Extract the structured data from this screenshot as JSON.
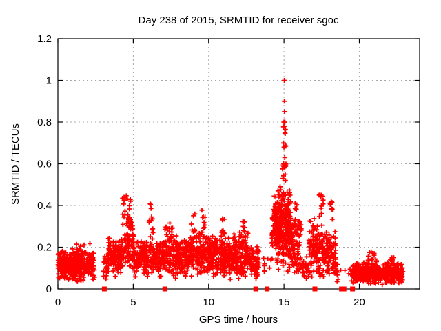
{
  "title": "Day 238 of 2015, SRMTID for receiver sgoc",
  "colors": {
    "marker": "#ff0000",
    "grid": "#a8a8a8",
    "axis": "#000000",
    "background": "#ffffff",
    "text": "#000000"
  },
  "chart_data": {
    "type": "scatter",
    "title": "Day 238 of 2015, SRMTID for receiver sgoc",
    "xlabel": "GPS time / hours",
    "ylabel": "SRMTID / TECUs",
    "xlim": [
      0,
      24
    ],
    "ylim": [
      0,
      1.2
    ],
    "x_ticks": [
      0,
      5,
      10,
      15,
      20
    ],
    "x_tick_labels": [
      "0",
      "5",
      "10",
      "15",
      "20"
    ],
    "y_ticks": [
      0,
      0.2,
      0.4,
      0.6,
      0.8,
      1.0,
      1.2
    ],
    "y_tick_labels": [
      "0",
      "0.2",
      "0.4",
      "0.6",
      "0.8",
      "1",
      "1.2"
    ],
    "grid": "dashed-gray-at-major-ticks",
    "legend": "none",
    "marker": "plus",
    "marker_color": "#ff0000",
    "series_name": "SRMTID",
    "peak_points": [
      [
        15.02,
        1.0
      ],
      [
        15.02,
        0.9
      ],
      [
        15.03,
        0.85
      ],
      [
        15.0,
        0.8
      ],
      [
        15.06,
        0.8
      ],
      [
        15.04,
        0.78
      ],
      [
        14.97,
        0.7
      ],
      [
        15.0,
        0.68
      ],
      [
        15.05,
        0.63
      ],
      [
        14.98,
        0.6
      ],
      [
        15.08,
        0.55
      ],
      [
        14.93,
        0.53
      ],
      [
        15.1,
        0.52
      ],
      [
        14.6,
        0.47
      ],
      [
        14.65,
        0.44
      ]
    ],
    "zero_marker_x": [
      3.08,
      7.1,
      13.13,
      13.88,
      17.05,
      18.82,
      18.98,
      19.55
    ],
    "density_bands": [
      {
        "x0": 0.0,
        "x1": 2.45,
        "n": 340,
        "y0": 0.03,
        "y1": 0.19,
        "dist": "tri"
      },
      {
        "x0": 0.95,
        "x1": 2.4,
        "n": 18,
        "y0": 0.16,
        "y1": 0.22,
        "dist": "uni"
      },
      {
        "x0": 3.02,
        "x1": 3.35,
        "n": 22,
        "y0": 0.04,
        "y1": 0.17,
        "dist": "uni"
      },
      {
        "x0": 3.35,
        "x1": 4.3,
        "n": 130,
        "y0": 0.05,
        "y1": 0.26,
        "dist": "tri"
      },
      {
        "x0": 4.28,
        "x1": 4.55,
        "n": 26,
        "y0": 0.12,
        "y1": 0.47,
        "dist": "uni"
      },
      {
        "x0": 4.55,
        "x1": 5.05,
        "n": 70,
        "y0": 0.08,
        "y1": 0.35,
        "dist": "tri"
      },
      {
        "x0": 4.6,
        "x1": 4.85,
        "n": 10,
        "y0": 0.33,
        "y1": 0.46,
        "dist": "uni"
      },
      {
        "x0": 5.05,
        "x1": 6.05,
        "n": 110,
        "y0": 0.05,
        "y1": 0.25,
        "dist": "tri"
      },
      {
        "x0": 6.05,
        "x1": 6.35,
        "n": 18,
        "y0": 0.2,
        "y1": 0.41,
        "dist": "uni"
      },
      {
        "x0": 6.1,
        "x1": 7.1,
        "n": 110,
        "y0": 0.05,
        "y1": 0.24,
        "dist": "tri"
      },
      {
        "x0": 7.1,
        "x1": 7.65,
        "n": 60,
        "y0": 0.06,
        "y1": 0.33,
        "dist": "tri"
      },
      {
        "x0": 7.65,
        "x1": 9.05,
        "n": 170,
        "y0": 0.05,
        "y1": 0.26,
        "dist": "tri"
      },
      {
        "x0": 8.85,
        "x1": 9.1,
        "n": 8,
        "y0": 0.25,
        "y1": 0.36,
        "dist": "uni"
      },
      {
        "x0": 9.15,
        "x1": 10.25,
        "n": 150,
        "y0": 0.06,
        "y1": 0.28,
        "dist": "tri"
      },
      {
        "x0": 9.55,
        "x1": 9.8,
        "n": 8,
        "y0": 0.28,
        "y1": 0.38,
        "dist": "uni"
      },
      {
        "x0": 10.25,
        "x1": 11.55,
        "n": 170,
        "y0": 0.04,
        "y1": 0.26,
        "dist": "tri"
      },
      {
        "x0": 10.8,
        "x1": 11.05,
        "n": 10,
        "y0": 0.25,
        "y1": 0.34,
        "dist": "uni"
      },
      {
        "x0": 11.55,
        "x1": 12.65,
        "n": 140,
        "y0": 0.04,
        "y1": 0.28,
        "dist": "tri"
      },
      {
        "x0": 12.25,
        "x1": 12.5,
        "n": 8,
        "y0": 0.27,
        "y1": 0.33,
        "dist": "uni"
      },
      {
        "x0": 12.65,
        "x1": 13.35,
        "n": 70,
        "y0": 0.04,
        "y1": 0.22,
        "dist": "tri"
      },
      {
        "x0": 13.55,
        "x1": 14.15,
        "n": 10,
        "y0": 0.08,
        "y1": 0.15,
        "dist": "uni"
      },
      {
        "x0": 14.2,
        "x1": 14.55,
        "n": 60,
        "y0": 0.12,
        "y1": 0.46,
        "dist": "tri"
      },
      {
        "x0": 14.5,
        "x1": 15.45,
        "n": 260,
        "y0": 0.08,
        "y1": 0.5,
        "dist": "tri"
      },
      {
        "x0": 14.9,
        "x1": 15.15,
        "n": 14,
        "y0": 0.5,
        "y1": 0.78,
        "dist": "uni"
      },
      {
        "x0": 15.35,
        "x1": 16.15,
        "n": 90,
        "y0": 0.07,
        "y1": 0.36,
        "dist": "tri"
      },
      {
        "x0": 15.65,
        "x1": 15.9,
        "n": 8,
        "y0": 0.28,
        "y1": 0.44,
        "dist": "uni"
      },
      {
        "x0": 16.15,
        "x1": 16.65,
        "n": 25,
        "y0": 0.04,
        "y1": 0.16,
        "dist": "tri"
      },
      {
        "x0": 16.65,
        "x1": 17.55,
        "n": 110,
        "y0": 0.05,
        "y1": 0.35,
        "dist": "tri"
      },
      {
        "x0": 17.3,
        "x1": 17.6,
        "n": 10,
        "y0": 0.34,
        "y1": 0.45,
        "dist": "uni"
      },
      {
        "x0": 17.55,
        "x1": 18.45,
        "n": 110,
        "y0": 0.04,
        "y1": 0.3,
        "dist": "tri"
      },
      {
        "x0": 18.05,
        "x1": 18.3,
        "n": 8,
        "y0": 0.3,
        "y1": 0.42,
        "dist": "uni"
      },
      {
        "x0": 18.45,
        "x1": 18.6,
        "n": 10,
        "y0": 0.03,
        "y1": 0.12,
        "dist": "uni"
      },
      {
        "x0": 18.6,
        "x1": 19.45,
        "n": 4,
        "y0": 0.05,
        "y1": 0.1,
        "dist": "uni"
      },
      {
        "x0": 19.45,
        "x1": 22.9,
        "n": 430,
        "y0": 0.02,
        "y1": 0.13,
        "dist": "tri"
      },
      {
        "x0": 20.55,
        "x1": 21.25,
        "n": 14,
        "y0": 0.13,
        "y1": 0.18,
        "dist": "uni"
      },
      {
        "x0": 22.05,
        "x1": 22.35,
        "n": 5,
        "y0": 0.13,
        "y1": 0.17,
        "dist": "uni"
      }
    ]
  }
}
